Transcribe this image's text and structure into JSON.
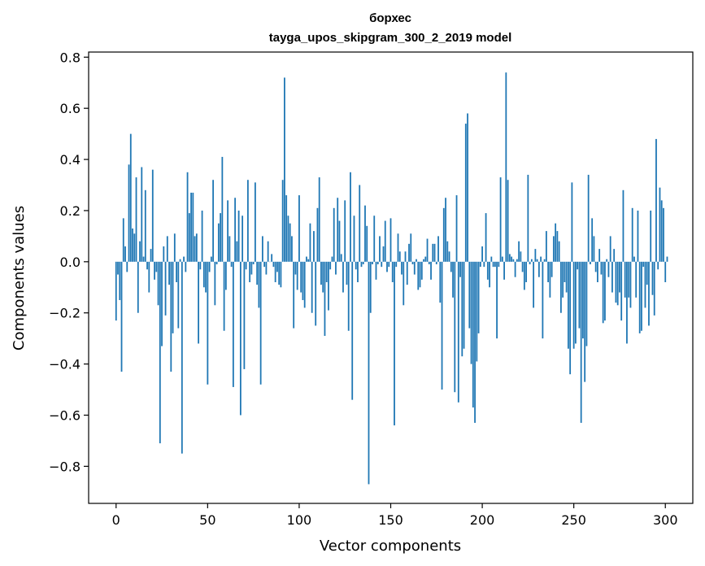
{
  "chart_data": {
    "type": "bar",
    "title_line1": "борхес",
    "title_line2": "tayga_upos_skipgram_300_2_2019 model",
    "xlabel": "Vector components",
    "ylabel": "Components values",
    "xlim": [
      -15,
      315
    ],
    "ylim": [
      -0.945,
      0.82
    ],
    "xticks": [
      0,
      50,
      100,
      150,
      200,
      250,
      300
    ],
    "xtick_labels": [
      "0",
      "50",
      "100",
      "150",
      "200",
      "250",
      "300"
    ],
    "yticks": [
      -0.8,
      -0.6,
      -0.4,
      -0.2,
      0.0,
      0.2,
      0.4,
      0.6,
      0.8
    ],
    "ytick_labels": [
      "−0.8",
      "−0.6",
      "−0.4",
      "−0.2",
      "0.0",
      "0.2",
      "0.4",
      "0.6",
      "0.8"
    ],
    "bar_color": "#1f77b4",
    "values": [
      -0.23,
      -0.05,
      -0.15,
      -0.43,
      0.17,
      0.06,
      -0.04,
      0.38,
      0.5,
      0.13,
      0.11,
      0.33,
      -0.2,
      0.08,
      0.37,
      0.02,
      0.28,
      -0.03,
      -0.12,
      0.05,
      0.36,
      -0.07,
      -0.04,
      -0.17,
      -0.71,
      -0.33,
      0.06,
      -0.21,
      0.1,
      -0.09,
      -0.43,
      -0.28,
      0.11,
      -0.08,
      -0.26,
      0.01,
      -0.75,
      0.02,
      -0.04,
      0.35,
      0.19,
      0.27,
      0.27,
      0.1,
      0.11,
      -0.32,
      -0.03,
      0.2,
      -0.1,
      -0.12,
      -0.48,
      -0.04,
      0.02,
      0.32,
      -0.17,
      -0.01,
      0.15,
      0.19,
      0.41,
      -0.27,
      -0.11,
      0.24,
      0.1,
      -0.02,
      -0.49,
      0.25,
      0.08,
      0.2,
      -0.6,
      0.18,
      -0.42,
      -0.03,
      0.32,
      -0.08,
      -0.05,
      -0.01,
      0.31,
      -0.09,
      -0.18,
      -0.48,
      0.1,
      -0.02,
      -0.05,
      0.08,
      0.0,
      0.03,
      -0.02,
      -0.08,
      -0.04,
      -0.09,
      -0.1,
      0.32,
      0.72,
      0.26,
      0.18,
      0.15,
      0.1,
      -0.26,
      -0.05,
      -0.11,
      0.26,
      -0.12,
      -0.15,
      -0.18,
      0.02,
      0.01,
      0.15,
      -0.2,
      0.12,
      -0.25,
      0.21,
      0.33,
      -0.09,
      -0.12,
      -0.29,
      -0.08,
      -0.19,
      -0.03,
      0.02,
      0.21,
      -0.05,
      0.25,
      0.16,
      0.03,
      -0.12,
      0.24,
      -0.09,
      -0.27,
      0.35,
      -0.54,
      0.18,
      -0.03,
      -0.08,
      0.3,
      -0.02,
      -0.01,
      0.22,
      0.14,
      -0.87,
      -0.2,
      -0.01,
      0.18,
      -0.07,
      -0.01,
      0.1,
      -0.02,
      0.06,
      0.16,
      -0.04,
      -0.02,
      0.17,
      -0.08,
      -0.64,
      -0.02,
      0.11,
      0.04,
      -0.05,
      -0.17,
      0.04,
      -0.09,
      0.07,
      0.11,
      -0.01,
      -0.05,
      0.01,
      -0.11,
      -0.1,
      -0.07,
      0.01,
      0.02,
      0.09,
      -0.01,
      -0.07,
      0.07,
      0.07,
      -0.01,
      0.1,
      -0.16,
      -0.5,
      0.21,
      0.25,
      0.08,
      0.04,
      -0.04,
      -0.14,
      -0.51,
      0.26,
      -0.55,
      -0.06,
      -0.37,
      -0.34,
      0.54,
      0.58,
      -0.26,
      -0.4,
      -0.57,
      -0.63,
      -0.39,
      -0.28,
      -0.02,
      0.06,
      -0.02,
      0.19,
      -0.07,
      -0.1,
      0.02,
      -0.02,
      -0.02,
      -0.3,
      -0.02,
      0.33,
      0.02,
      -0.07,
      0.74,
      0.32,
      0.03,
      0.02,
      0.01,
      -0.06,
      0.01,
      0.08,
      0.04,
      -0.04,
      -0.11,
      -0.08,
      0.34,
      -0.01,
      0.01,
      -0.18,
      0.05,
      0.01,
      -0.06,
      0.02,
      -0.3,
      0.01,
      0.12,
      -0.08,
      -0.14,
      -0.06,
      0.1,
      0.15,
      0.12,
      0.08,
      -0.2,
      -0.14,
      -0.08,
      -0.12,
      -0.34,
      -0.44,
      0.31,
      -0.34,
      -0.32,
      -0.03,
      -0.26,
      -0.63,
      -0.3,
      -0.47,
      -0.33,
      0.34,
      -0.01,
      0.17,
      0.1,
      -0.04,
      -0.08,
      0.05,
      -0.05,
      -0.24,
      -0.23,
      0.01,
      -0.06,
      0.1,
      -0.12,
      0.05,
      -0.16,
      -0.17,
      -0.12,
      -0.23,
      0.28,
      -0.14,
      -0.32,
      -0.14,
      -0.18,
      0.21,
      0.02,
      -0.14,
      0.2,
      -0.28,
      -0.27,
      -0.02,
      -0.18,
      -0.09,
      -0.25,
      0.2,
      -0.13,
      -0.21,
      0.48,
      -0.03,
      0.29,
      0.24,
      0.21,
      -0.08,
      0.02
    ]
  }
}
